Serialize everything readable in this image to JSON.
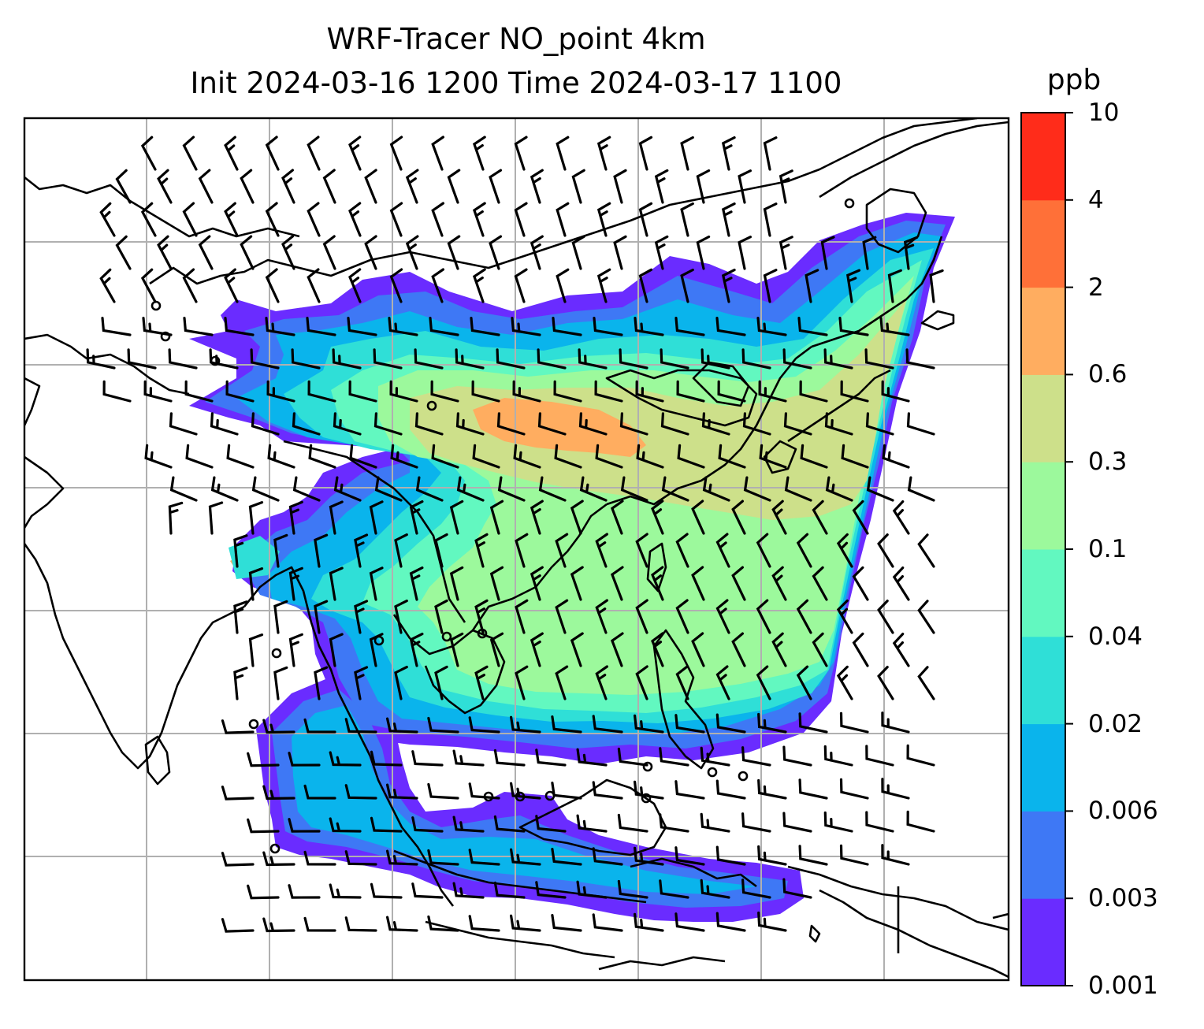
{
  "title": {
    "line1": "WRF-Tracer NO_point 4km",
    "line2": "Init 2024-03-16 1200 Time 2024-03-17 1100"
  },
  "colorbar": {
    "unit": "ppb",
    "ticks": [
      "0.001",
      "0.003",
      "0.006",
      "0.02",
      "0.04",
      "0.1",
      "0.3",
      "0.6",
      "2",
      "4",
      "10"
    ],
    "colors": [
      "#6a2cff",
      "#3e78f5",
      "#0ab4ec",
      "#2fdfd7",
      "#62f8c0",
      "#9cf99c",
      "#cde08a",
      "#ffad60",
      "#ff7038",
      "#ff2c1a"
    ]
  },
  "map": {
    "gridline_color": "#b0b0b0",
    "coastline_color": "#000000",
    "barb_color": "#000000"
  }
}
